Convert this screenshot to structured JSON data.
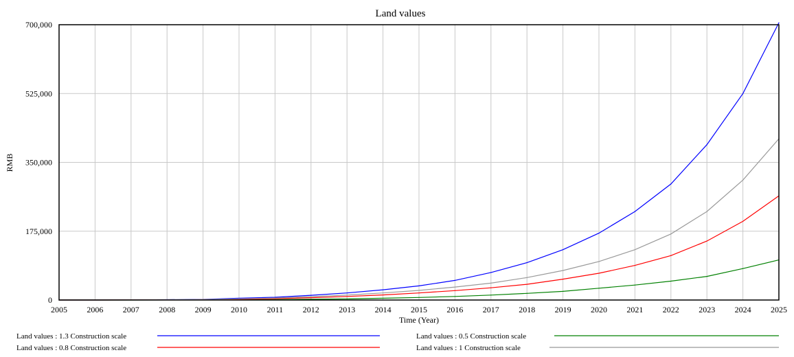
{
  "chart_data": {
    "type": "line",
    "title": "Land values",
    "xlabel": "Time (Year)",
    "ylabel": "RMB",
    "xlim": [
      2005,
      2025
    ],
    "ylim": [
      0,
      700000
    ],
    "x_ticks": [
      "2005",
      "2006",
      "2007",
      "2008",
      "2009",
      "2010",
      "2011",
      "2012",
      "2013",
      "2014",
      "2015",
      "2016",
      "2017",
      "2018",
      "2019",
      "2020",
      "2021",
      "2022",
      "2023",
      "2024",
      "2025"
    ],
    "y_ticks": [
      "0",
      "175,000",
      "350,000",
      "525,000",
      "700,000"
    ],
    "y_tick_values": [
      0,
      175000,
      350000,
      525000,
      700000
    ],
    "grid": true,
    "legend_position": "bottom",
    "x": [
      2005,
      2006,
      2007,
      2008,
      2009,
      2010,
      2011,
      2012,
      2013,
      2014,
      2015,
      2016,
      2017,
      2018,
      2019,
      2020,
      2021,
      2022,
      2023,
      2024,
      2025
    ],
    "series": [
      {
        "name": "Land values : 1.3 Construction scale",
        "color": "#0000ff",
        "values": [
          0,
          0,
          300,
          900,
          1500,
          4500,
          7000,
          12000,
          18000,
          26000,
          36000,
          50000,
          70000,
          95000,
          128000,
          170000,
          225000,
          295000,
          395000,
          525000,
          705000
        ]
      },
      {
        "name": "Land values : 0.5 Construction scale",
        "color": "#008000",
        "values": [
          0,
          0,
          0,
          200,
          400,
          800,
          1300,
          2000,
          3000,
          4500,
          6500,
          9000,
          12500,
          17000,
          22000,
          30000,
          38000,
          48000,
          60000,
          80000,
          102000
        ]
      },
      {
        "name": "Land values : 0.8 Construction scale",
        "color": "#ff0000",
        "values": [
          0,
          0,
          100,
          400,
          800,
          2000,
          3500,
          6000,
          9000,
          13000,
          18000,
          24000,
          31000,
          40000,
          53000,
          68000,
          88000,
          113000,
          150000,
          200000,
          265000
        ]
      },
      {
        "name": "Land values : 1 Construction scale",
        "color": "#999999",
        "values": [
          0,
          0,
          150,
          600,
          1100,
          3000,
          5000,
          8500,
          12500,
          18000,
          24500,
          33000,
          43000,
          57000,
          75000,
          98000,
          128000,
          168000,
          225000,
          305000,
          410000
        ]
      }
    ]
  }
}
